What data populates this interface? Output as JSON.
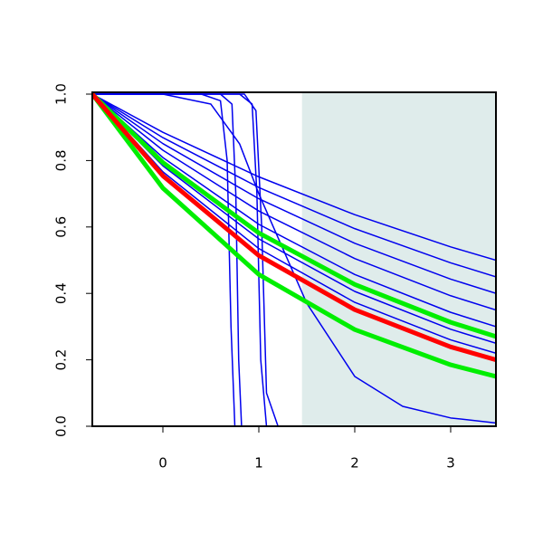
{
  "chart_data": {
    "type": "line",
    "xlim": [
      -0.736,
      3.472
    ],
    "ylim": [
      0,
      1
    ],
    "xticks": [
      0,
      1,
      2,
      3
    ],
    "yticks": [
      {
        "value": 0,
        "label": "0.0"
      },
      0.2,
      0.4,
      0.6,
      0.8,
      {
        "value": 1,
        "label": "1.0"
      }
    ],
    "shaded_region": [
      1.45,
      3.472
    ],
    "shade_color": "#dfeceb",
    "series": [
      {
        "color": "#0000ee",
        "width": 1.5,
        "x": [
          -0.736,
          0,
          1,
          2,
          3,
          3.472
        ],
        "values": [
          1,
          0.885,
          0.751,
          0.637,
          0.54,
          0.5
        ]
      },
      {
        "color": "#0000ee",
        "width": 1.5,
        "x": [
          -0.736,
          0,
          1,
          2,
          3,
          3.472
        ],
        "values": [
          1,
          0.869,
          0.719,
          0.595,
          0.492,
          0.45
        ]
      },
      {
        "color": "#0000ee",
        "width": 1.5,
        "x": [
          -0.736,
          0,
          1,
          2,
          3,
          3.472
        ],
        "values": [
          1,
          0.851,
          0.685,
          0.551,
          0.443,
          0.4
        ]
      },
      {
        "color": "#0000ee",
        "width": 1.5,
        "x": [
          -0.736,
          0,
          1,
          2,
          3,
          3.472
        ],
        "values": [
          1,
          0.831,
          0.648,
          0.505,
          0.393,
          0.35
        ]
      },
      {
        "color": "#0000ee",
        "width": 1.5,
        "x": [
          -0.736,
          0,
          1,
          2,
          3,
          3.472
        ],
        "values": [
          1,
          0.809,
          0.608,
          0.457,
          0.343,
          0.3
        ]
      },
      {
        "color": "#0000ee",
        "width": 1.5,
        "x": [
          -0.736,
          0,
          1,
          2,
          3,
          3.472
        ],
        "values": [
          1,
          0.784,
          0.564,
          0.406,
          0.292,
          0.25
        ]
      },
      {
        "color": "#0000ee",
        "width": 1.5,
        "x": [
          -0.736,
          0,
          1,
          2,
          3,
          3.472
        ],
        "values": [
          1,
          0.766,
          0.535,
          0.373,
          0.26,
          0.22
        ]
      },
      {
        "color": "#0000ee",
        "width": 1.5,
        "x": [
          -0.736,
          0.4,
          0.6,
          0.67,
          0.71,
          0.75,
          3.472
        ],
        "values": [
          1,
          1,
          0.98,
          0.8,
          0.3,
          0,
          0
        ]
      },
      {
        "color": "#0000ee",
        "width": 1.5,
        "x": [
          -0.736,
          0.6,
          0.72,
          0.76,
          0.79,
          0.82,
          3.472
        ],
        "values": [
          1,
          1,
          0.97,
          0.7,
          0.2,
          0,
          0
        ]
      },
      {
        "color": "#0000ee",
        "width": 1.5,
        "x": [
          -0.736,
          0.8,
          0.93,
          0.98,
          1.02,
          1.08,
          3.472
        ],
        "values": [
          1,
          1,
          0.97,
          0.7,
          0.2,
          0,
          0
        ]
      },
      {
        "color": "#0000ee",
        "width": 1.5,
        "x": [
          -0.736,
          0.85,
          0.97,
          1.03,
          1.08,
          1.2,
          3.472
        ],
        "values": [
          1,
          1,
          0.95,
          0.6,
          0.1,
          0,
          0
        ]
      },
      {
        "color": "#0000ee",
        "width": 1.5,
        "x": [
          -0.736,
          0,
          0.5,
          0.8,
          1,
          1.5,
          2,
          2.5,
          3,
          3.472
        ],
        "values": [
          1,
          1,
          0.97,
          0.85,
          0.7,
          0.37,
          0.15,
          0.06,
          0.025,
          0.01
        ]
      },
      {
        "color": "#00ee00",
        "width": 5,
        "x": [
          -0.736,
          0,
          1,
          2,
          3,
          3.472
        ],
        "values": [
          1,
          0.717,
          0.457,
          0.291,
          0.185,
          0.15
        ]
      },
      {
        "color": "#00ee00",
        "width": 5,
        "x": [
          -0.736,
          0,
          1,
          2,
          3,
          3.472
        ],
        "values": [
          1,
          0.794,
          0.582,
          0.427,
          0.313,
          0.27
        ]
      },
      {
        "color": "#ff0000",
        "width": 5,
        "x": [
          -0.736,
          0,
          1,
          2,
          3,
          3.472
        ],
        "values": [
          1,
          0.754,
          0.514,
          0.351,
          0.239,
          0.2
        ]
      }
    ]
  }
}
